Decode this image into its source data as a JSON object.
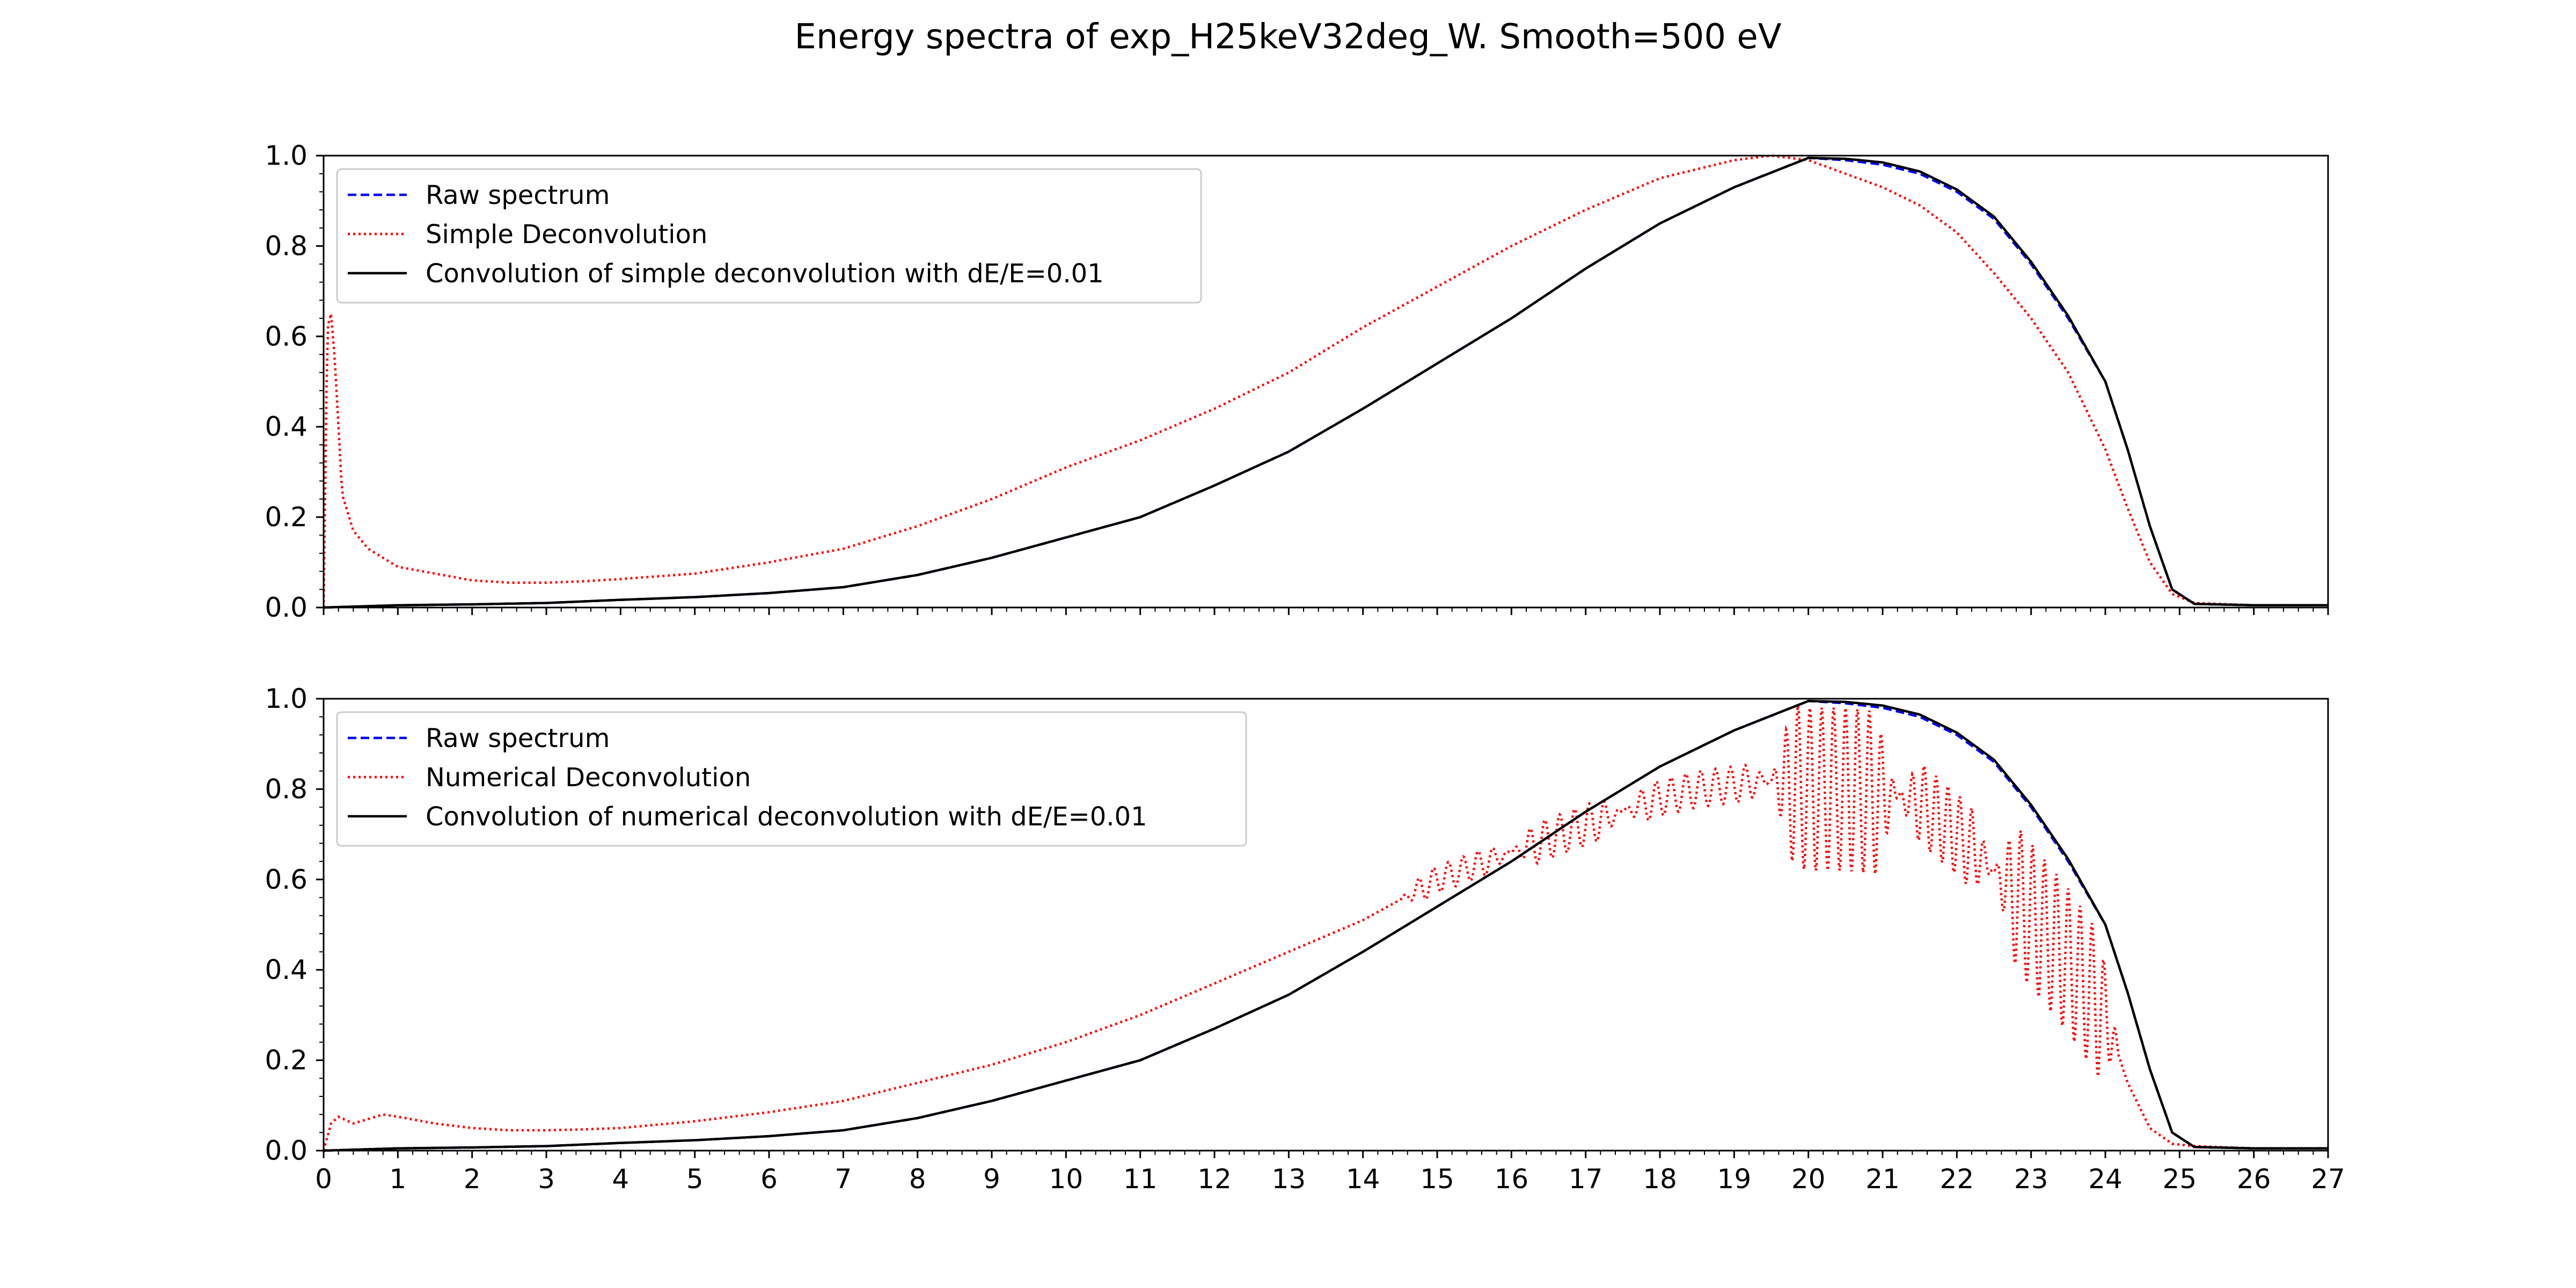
{
  "figure": {
    "title": "Energy spectra of exp_H25keV32deg_W. Smooth=500 eV"
  },
  "chart_data": [
    {
      "type": "line",
      "xlim": [
        0,
        27
      ],
      "ylim": [
        0,
        1.0
      ],
      "x_ticks": [
        "0",
        "1",
        "2",
        "3",
        "4",
        "5",
        "6",
        "7",
        "8",
        "9",
        "10",
        "11",
        "12",
        "13",
        "14",
        "15",
        "16",
        "17",
        "18",
        "19",
        "20",
        "21",
        "22",
        "23",
        "24",
        "25",
        "26",
        "27"
      ],
      "y_ticks": [
        "0.0",
        "0.2",
        "0.4",
        "0.6",
        "0.8",
        "1.0"
      ],
      "legend_position": "upper-left",
      "grid": false,
      "series": [
        {
          "name": "Raw spectrum",
          "color": "#0000ff",
          "style": "dashed",
          "x": [
            0,
            1,
            2,
            3,
            4,
            5,
            6,
            7,
            8,
            9,
            10,
            11,
            12,
            13,
            14,
            15,
            16,
            17,
            18,
            19,
            20,
            20.5,
            21,
            21.5,
            22,
            22.5,
            23,
            23.5,
            24,
            24.3,
            24.6,
            24.9,
            25.2,
            26,
            27
          ],
          "y": [
            0.0,
            0.005,
            0.007,
            0.01,
            0.017,
            0.023,
            0.032,
            0.045,
            0.072,
            0.11,
            0.155,
            0.2,
            0.27,
            0.345,
            0.44,
            0.54,
            0.64,
            0.75,
            0.85,
            0.93,
            0.995,
            0.99,
            0.98,
            0.96,
            0.92,
            0.86,
            0.76,
            0.64,
            0.5,
            0.35,
            0.18,
            0.04,
            0.008,
            0.005,
            0.005
          ]
        },
        {
          "name": "Simple Deconvolution",
          "color": "#ff0000",
          "style": "dotted",
          "x": [
            0,
            0.05,
            0.1,
            0.15,
            0.25,
            0.4,
            0.6,
            0.8,
            1,
            1.5,
            2,
            2.5,
            3,
            3.5,
            4,
            5,
            6,
            7,
            8,
            9,
            10,
            11,
            12,
            13,
            14,
            15,
            16,
            17,
            18,
            19,
            19.5,
            20,
            20.5,
            21,
            21.5,
            22,
            22.5,
            23,
            23.5,
            24,
            24.3,
            24.6,
            24.9,
            25.2,
            26,
            27
          ],
          "y": [
            0.0,
            0.62,
            0.65,
            0.55,
            0.25,
            0.17,
            0.13,
            0.11,
            0.09,
            0.075,
            0.06,
            0.055,
            0.055,
            0.058,
            0.063,
            0.075,
            0.1,
            0.13,
            0.18,
            0.24,
            0.31,
            0.37,
            0.44,
            0.52,
            0.62,
            0.71,
            0.8,
            0.88,
            0.95,
            0.99,
            1.0,
            0.99,
            0.96,
            0.93,
            0.89,
            0.83,
            0.74,
            0.64,
            0.52,
            0.35,
            0.22,
            0.1,
            0.03,
            0.01,
            0.005,
            0.005
          ]
        },
        {
          "name": "Convolution of simple deconvolution with dE/E=0.01",
          "color": "#000000",
          "style": "solid",
          "x": [
            0,
            1,
            2,
            3,
            4,
            5,
            6,
            7,
            8,
            9,
            10,
            11,
            12,
            13,
            14,
            15,
            16,
            17,
            18,
            19,
            20,
            20.5,
            21,
            21.5,
            22,
            22.5,
            23,
            23.5,
            24,
            24.3,
            24.6,
            24.9,
            25.2,
            26,
            27
          ],
          "y": [
            0.0,
            0.005,
            0.007,
            0.01,
            0.017,
            0.023,
            0.032,
            0.045,
            0.072,
            0.11,
            0.155,
            0.2,
            0.27,
            0.345,
            0.44,
            0.54,
            0.64,
            0.75,
            0.85,
            0.93,
            0.995,
            0.993,
            0.985,
            0.965,
            0.925,
            0.865,
            0.765,
            0.645,
            0.5,
            0.35,
            0.18,
            0.04,
            0.008,
            0.005,
            0.005
          ]
        }
      ]
    },
    {
      "type": "line",
      "xlim": [
        0,
        27
      ],
      "ylim": [
        0,
        1.0
      ],
      "xlabel": "",
      "x_ticks": [
        "0",
        "1",
        "2",
        "3",
        "4",
        "5",
        "6",
        "7",
        "8",
        "9",
        "10",
        "11",
        "12",
        "13",
        "14",
        "15",
        "16",
        "17",
        "18",
        "19",
        "20",
        "21",
        "22",
        "23",
        "24",
        "25",
        "26",
        "27"
      ],
      "y_ticks": [
        "0.0",
        "0.2",
        "0.4",
        "0.6",
        "0.8",
        "1.0"
      ],
      "legend_position": "upper-left",
      "grid": false,
      "series": [
        {
          "name": "Raw spectrum",
          "color": "#0000ff",
          "style": "dashed",
          "x": [
            0,
            1,
            2,
            3,
            4,
            5,
            6,
            7,
            8,
            9,
            10,
            11,
            12,
            13,
            14,
            15,
            16,
            17,
            18,
            19,
            20,
            20.5,
            21,
            21.5,
            22,
            22.5,
            23,
            23.5,
            24,
            24.3,
            24.6,
            24.9,
            25.2,
            26,
            27
          ],
          "y": [
            0.0,
            0.005,
            0.007,
            0.01,
            0.017,
            0.023,
            0.032,
            0.045,
            0.072,
            0.11,
            0.155,
            0.2,
            0.27,
            0.345,
            0.44,
            0.54,
            0.64,
            0.75,
            0.85,
            0.93,
            0.995,
            0.99,
            0.98,
            0.96,
            0.92,
            0.86,
            0.76,
            0.64,
            0.5,
            0.35,
            0.18,
            0.04,
            0.008,
            0.005,
            0.005
          ]
        },
        {
          "name": "Numerical Deconvolution",
          "color": "#ff0000",
          "style": "dotted",
          "oscillation": [
            {
              "x_start": 14.5,
              "x_end": 16.0,
              "amplitude": 0.03,
              "period": 0.2
            },
            {
              "x_start": 16.0,
              "x_end": 17.5,
              "amplitude": 0.045,
              "period": 0.2
            },
            {
              "x_start": 17.5,
              "x_end": 19.5,
              "amplitude": 0.04,
              "period": 0.2
            },
            {
              "x_start": 19.5,
              "x_end": 21.2,
              "amplitude": 0.18,
              "period": 0.16
            },
            {
              "x_start": 21.2,
              "x_end": 22.5,
              "amplitude": 0.09,
              "period": 0.16
            },
            {
              "x_start": 22.5,
              "x_end": 24.2,
              "amplitude": 0.16,
              "period": 0.16
            }
          ],
          "x": [
            0,
            0.1,
            0.2,
            0.4,
            0.6,
            0.8,
            1,
            1.5,
            2,
            2.5,
            3,
            3.5,
            4,
            5,
            6,
            7,
            8,
            9,
            10,
            11,
            12,
            13,
            14,
            15,
            16,
            17,
            17.5,
            18,
            18.5,
            19,
            19.5,
            20,
            20.5,
            21,
            21.5,
            22,
            22.5,
            23,
            23.5,
            24,
            24.3,
            24.6,
            24.9,
            25.2,
            26,
            27
          ],
          "y": [
            0.0,
            0.06,
            0.075,
            0.06,
            0.07,
            0.08,
            0.075,
            0.06,
            0.05,
            0.045,
            0.045,
            0.047,
            0.05,
            0.065,
            0.085,
            0.11,
            0.15,
            0.19,
            0.24,
            0.3,
            0.37,
            0.44,
            0.51,
            0.6,
            0.66,
            0.72,
            0.75,
            0.78,
            0.8,
            0.81,
            0.82,
            0.8,
            0.8,
            0.79,
            0.77,
            0.7,
            0.62,
            0.52,
            0.42,
            0.3,
            0.15,
            0.05,
            0.015,
            0.01,
            0.005,
            0.005
          ]
        },
        {
          "name": "Convolution of numerical deconvolution with dE/E=0.01",
          "color": "#000000",
          "style": "solid",
          "x": [
            0,
            1,
            2,
            3,
            4,
            5,
            6,
            7,
            8,
            9,
            10,
            11,
            12,
            13,
            14,
            15,
            16,
            17,
            18,
            19,
            20,
            20.5,
            21,
            21.5,
            22,
            22.5,
            23,
            23.5,
            24,
            24.3,
            24.6,
            24.9,
            25.2,
            26,
            27
          ],
          "y": [
            0.0,
            0.005,
            0.007,
            0.01,
            0.017,
            0.023,
            0.032,
            0.045,
            0.072,
            0.11,
            0.155,
            0.2,
            0.27,
            0.345,
            0.44,
            0.54,
            0.64,
            0.75,
            0.85,
            0.93,
            0.995,
            0.993,
            0.985,
            0.965,
            0.925,
            0.865,
            0.765,
            0.645,
            0.5,
            0.35,
            0.18,
            0.04,
            0.008,
            0.005,
            0.005
          ]
        }
      ]
    }
  ]
}
